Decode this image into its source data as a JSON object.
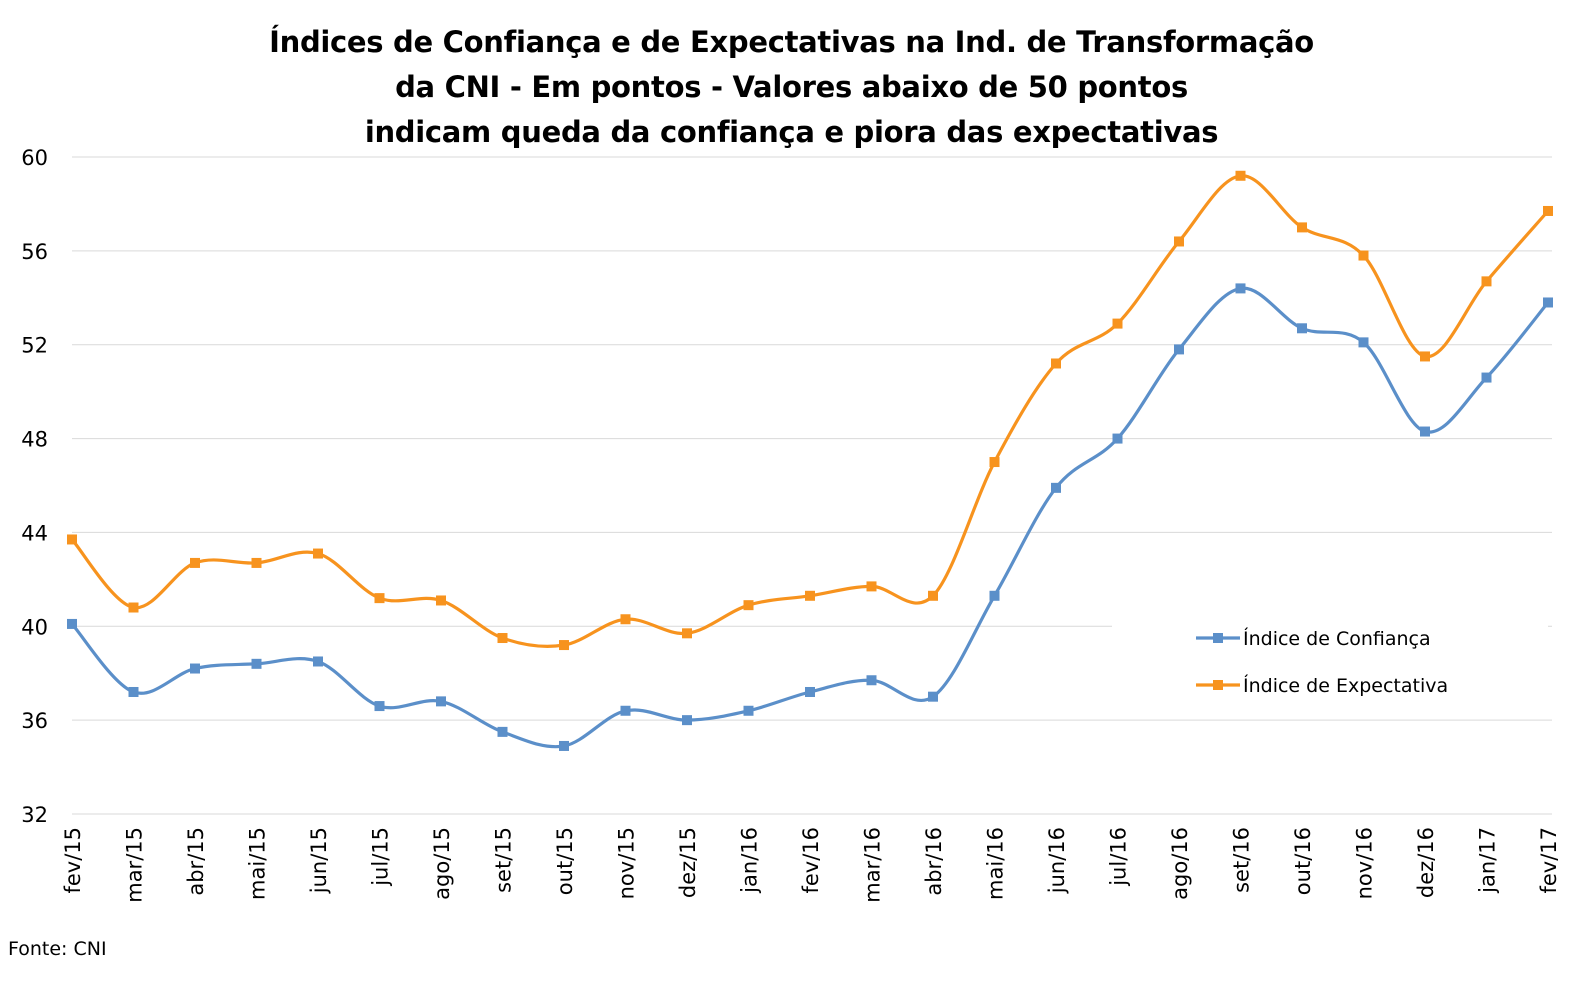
{
  "chart_data": {
    "type": "line",
    "title_lines": [
      "Índices de Confiança e de Expectativas na Ind. de Transformação",
      "da CNI - Em pontos - Valores abaixo de 50 pontos",
      "indicam queda da confiança e piora das expectativas"
    ],
    "categories": [
      "fev/15",
      "mar/15",
      "abr/15",
      "mai/15",
      "jun/15",
      "jul/15",
      "ago/15",
      "set/15",
      "out/15",
      "nov/15",
      "dez/15",
      "jan/16",
      "fev/16",
      "mar/16",
      "abr/16",
      "mai/16",
      "jun/16",
      "jul/16",
      "ago/16",
      "set/16",
      "out/16",
      "nov/16",
      "dez/16",
      "jan/17",
      "fev/17"
    ],
    "series": [
      {
        "name": "Índice de Confiança",
        "color": "#5b8fc9",
        "values": [
          40.1,
          37.2,
          38.2,
          38.4,
          38.5,
          36.6,
          36.8,
          35.5,
          34.9,
          36.4,
          36.0,
          36.4,
          37.2,
          37.7,
          37.0,
          41.3,
          45.9,
          48.0,
          51.8,
          54.4,
          52.7,
          52.1,
          48.3,
          50.6,
          53.8
        ]
      },
      {
        "name": "Índice de Expectativa",
        "color": "#f7931e",
        "values": [
          43.7,
          40.8,
          42.7,
          42.7,
          43.1,
          41.2,
          41.1,
          39.5,
          39.2,
          40.3,
          39.7,
          40.9,
          41.3,
          41.7,
          41.3,
          47.0,
          51.2,
          52.9,
          56.4,
          59.2,
          57.0,
          55.8,
          51.5,
          54.7,
          57.7
        ]
      }
    ],
    "yticks": [
      32,
      36,
      40,
      44,
      48,
      52,
      56,
      60
    ],
    "ylim": [
      32,
      60
    ],
    "grid": true,
    "gridline_color": "#d9d9d9",
    "legend_position": "right",
    "source": "Fonte: CNI"
  }
}
